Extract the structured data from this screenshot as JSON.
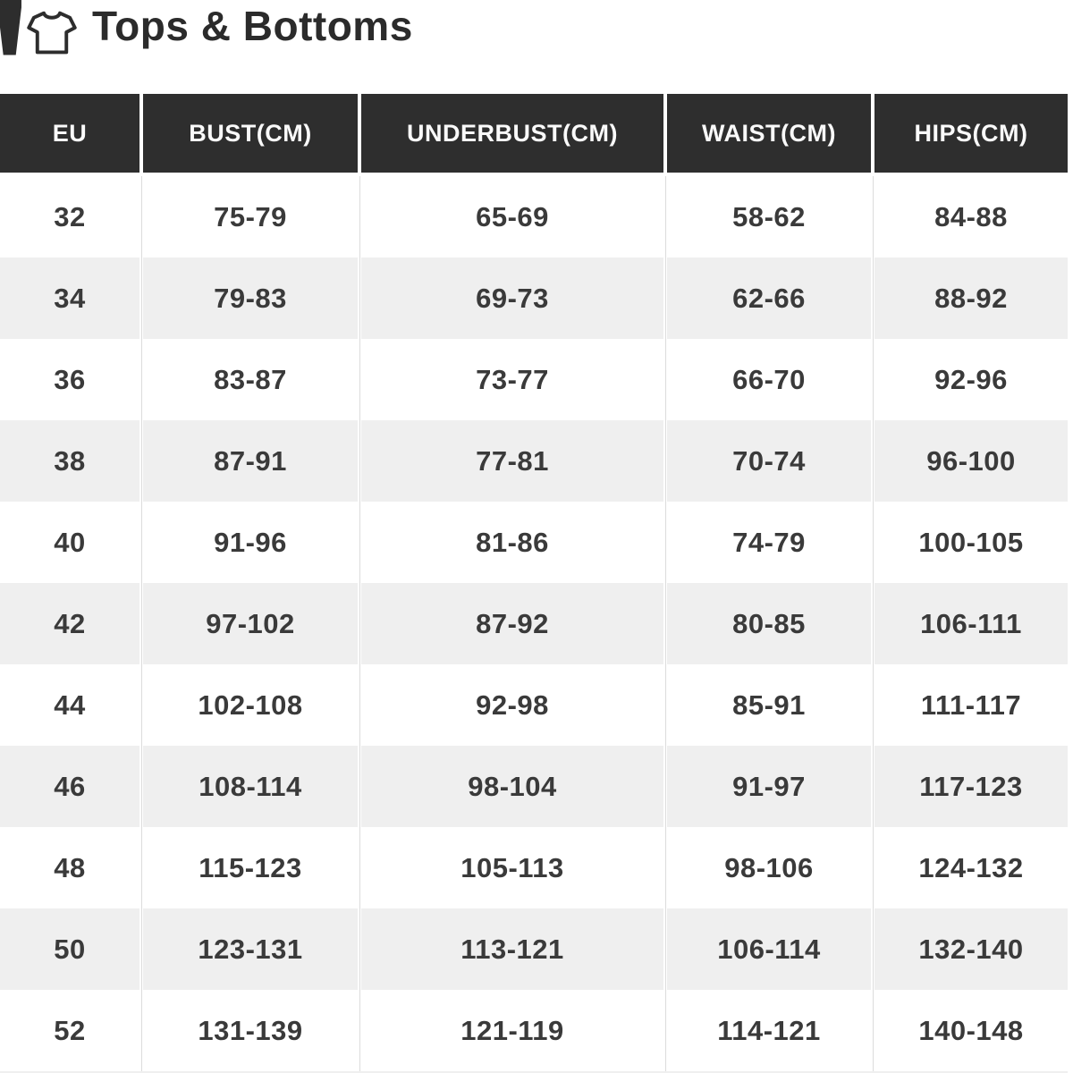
{
  "title": {
    "text": "Tops & Bottoms",
    "icons": [
      "pants-icon",
      "tshirt-icon"
    ]
  },
  "table": {
    "headers": [
      "EU",
      "BUST(CM)",
      "UNDERBUST(CM)",
      "WAIST(CM)",
      "HIPS(CM)"
    ],
    "rows": [
      [
        "32",
        "75-79",
        "65-69",
        "58-62",
        "84-88"
      ],
      [
        "34",
        "79-83",
        "69-73",
        "62-66",
        "88-92"
      ],
      [
        "36",
        "83-87",
        "73-77",
        "66-70",
        "92-96"
      ],
      [
        "38",
        "87-91",
        "77-81",
        "70-74",
        "96-100"
      ],
      [
        "40",
        "91-96",
        "81-86",
        "74-79",
        "100-105"
      ],
      [
        "42",
        "97-102",
        "87-92",
        "80-85",
        "106-111"
      ],
      [
        "44",
        "102-108",
        "92-98",
        "85-91",
        "111-117"
      ],
      [
        "46",
        "108-114",
        "98-104",
        "91-97",
        "117-123"
      ],
      [
        "48",
        "115-123",
        "105-113",
        "98-106",
        "124-132"
      ],
      [
        "50",
        "123-131",
        "113-121",
        "106-114",
        "132-140"
      ],
      [
        "52",
        "131-139",
        "121-119",
        "114-121",
        "140-148"
      ]
    ]
  },
  "colors": {
    "header-bg": "#2e2e2e",
    "row-alt": "#efefef",
    "cell-text": "#3a3a3a",
    "divider": "#dcdcdc",
    "title-text": "#2b2b2b"
  }
}
